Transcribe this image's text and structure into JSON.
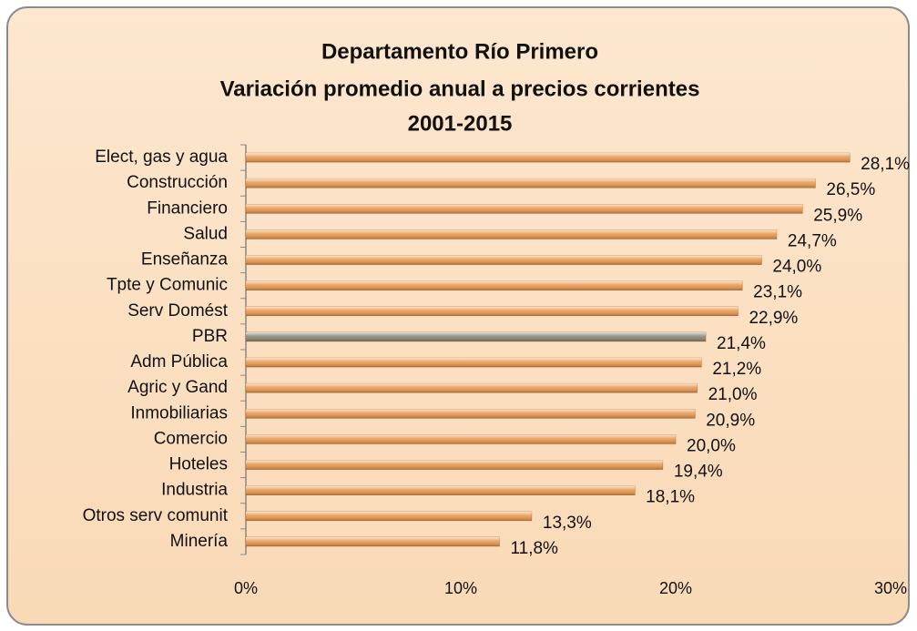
{
  "chart_data": {
    "type": "barh",
    "title": [
      "Departamento Río Primero",
      "Variación promedio anual a precios corrientes",
      "2001-2015"
    ],
    "categories": [
      "Elect, gas y agua",
      "Construcción",
      "Financiero",
      "Salud",
      "Enseñanza",
      "Tpte y Comunic",
      "Serv Domést",
      "PBR",
      "Adm Pública",
      "Agric y Gand",
      "Inmobiliarias",
      "Comercio",
      "Hoteles",
      "Industria",
      "Otros serv comunit",
      "Minería"
    ],
    "values": [
      28.1,
      26.5,
      25.9,
      24.7,
      24.0,
      23.1,
      22.9,
      21.4,
      21.2,
      21.0,
      20.9,
      20.0,
      19.4,
      18.1,
      13.3,
      11.8
    ],
    "value_labels": [
      "28,1%",
      "26,5%",
      "25,9%",
      "24,7%",
      "24,0%",
      "23,1%",
      "22,9%",
      "21,4%",
      "21,2%",
      "21,0%",
      "20,9%",
      "20,0%",
      "19,4%",
      "18,1%",
      "13,3%",
      "11,8%"
    ],
    "colors": [
      "#e9994f",
      "#e9994f",
      "#e9994f",
      "#e9994f",
      "#e9994f",
      "#e9994f",
      "#e9994f",
      "#8a8677",
      "#e9994f",
      "#e9994f",
      "#e9994f",
      "#e9994f",
      "#e9994f",
      "#e9994f",
      "#e9994f",
      "#e9994f"
    ],
    "xlim": [
      0,
      30
    ],
    "xticks": [
      {
        "value": 0,
        "label": "0%"
      },
      {
        "value": 10,
        "label": "10%"
      },
      {
        "value": 20,
        "label": "20%"
      },
      {
        "value": 30,
        "label": "30%"
      }
    ]
  }
}
